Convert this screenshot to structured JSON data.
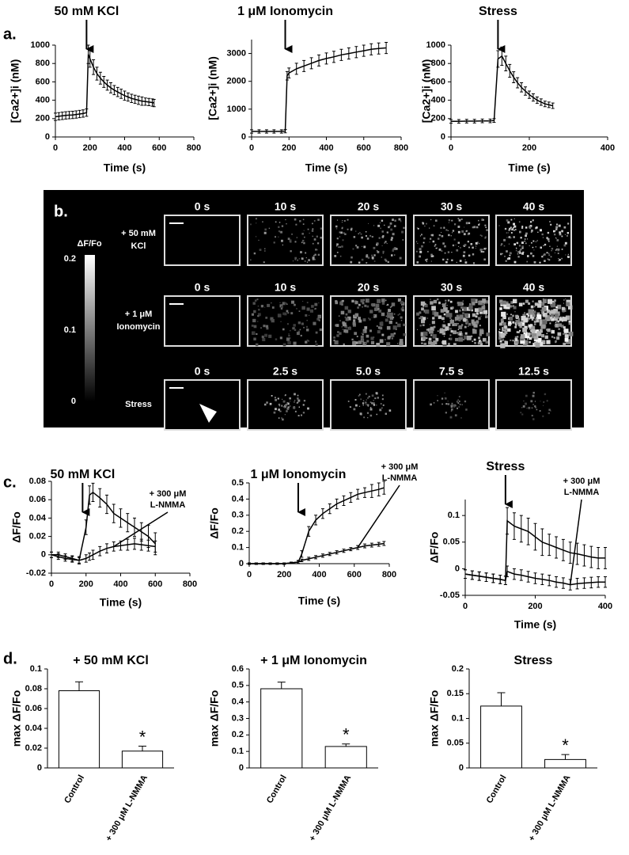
{
  "panel_labels": [
    "a.",
    "b.",
    "c.",
    "d."
  ],
  "image_panel": {
    "colorbar": {
      "label": "ΔF/Fo",
      "ticks": [
        0.2,
        0.1,
        0
      ]
    },
    "rows": [
      {
        "label": [
          "+ 50 mM",
          "KCl"
        ],
        "times": [
          "0 s",
          "10 s",
          "20 s",
          "30 s",
          "40 s"
        ]
      },
      {
        "label": [
          "+ 1 μM",
          "Ionomycin"
        ],
        "times": [
          "0 s",
          "10 s",
          "20 s",
          "30 s",
          "40 s"
        ]
      },
      {
        "label": [
          "Stress"
        ],
        "times": [
          "0 s",
          "2.5 s",
          "5.0 s",
          "7.5 s",
          "12.5 s"
        ]
      }
    ]
  },
  "chart_data": [
    {
      "type": "line",
      "stimulus": "50 mM KCl",
      "stimulus_x": 180,
      "ylabel": "[Ca2+]i (nM)",
      "xlabel": "Time (s)",
      "xlim": [
        0,
        800
      ],
      "xticks": [
        0,
        200,
        400,
        600,
        800
      ],
      "ylim": [
        0,
        1000
      ],
      "yticks": [
        0,
        200,
        400,
        600,
        800,
        1000
      ],
      "x": [
        0,
        20,
        40,
        60,
        80,
        100,
        120,
        140,
        160,
        180,
        190,
        200,
        220,
        240,
        260,
        280,
        300,
        320,
        340,
        360,
        380,
        400,
        420,
        440,
        460,
        480,
        500,
        520,
        540,
        560,
        570
      ],
      "series": [
        {
          "color": "#000000",
          "values": [
            220,
            225,
            230,
            235,
            238,
            240,
            245,
            250,
            255,
            265,
            900,
            850,
            760,
            690,
            640,
            600,
            565,
            535,
            510,
            490,
            470,
            450,
            435,
            420,
            410,
            400,
            390,
            385,
            380,
            375,
            370
          ],
          "errors": [
            40,
            40,
            40,
            40,
            40,
            40,
            40,
            40,
            40,
            40,
            100,
            90,
            80,
            70,
            65,
            60,
            55,
            55,
            50,
            50,
            50,
            50,
            45,
            45,
            45,
            45,
            45,
            40,
            40,
            40,
            40
          ]
        }
      ]
    },
    {
      "type": "line",
      "stimulus": "1 μM Ionomycin",
      "stimulus_x": 180,
      "ylabel": "[Ca2+]i (nM)",
      "xlabel": "Time (s)",
      "xlim": [
        0,
        800
      ],
      "xticks": [
        0,
        200,
        400,
        600,
        800
      ],
      "ylim": [
        0,
        3500
      ],
      "yticks": [
        0,
        1000,
        2000,
        3000
      ],
      "x": [
        0,
        40,
        80,
        120,
        160,
        180,
        190,
        200,
        240,
        280,
        320,
        360,
        400,
        440,
        480,
        520,
        560,
        600,
        640,
        680,
        720
      ],
      "series": [
        {
          "color": "#000000",
          "values": [
            200,
            200,
            200,
            200,
            200,
            210,
            2200,
            2300,
            2450,
            2550,
            2650,
            2750,
            2820,
            2880,
            2950,
            3000,
            3050,
            3100,
            3150,
            3180,
            3200
          ],
          "errors": [
            60,
            60,
            60,
            60,
            60,
            60,
            150,
            180,
            200,
            200,
            200,
            200,
            200,
            200,
            200,
            200,
            200,
            200,
            200,
            200,
            200
          ]
        }
      ]
    },
    {
      "type": "line",
      "stimulus": "Stress",
      "stimulus_x": 120,
      "ylabel": "[Ca2+]i (nM)",
      "xlabel": "Time (s)",
      "xlim": [
        0,
        400
      ],
      "xticks": [
        0,
        200,
        400
      ],
      "ylim": [
        0,
        1000
      ],
      "yticks": [
        0,
        200,
        400,
        600,
        800,
        1000
      ],
      "x": [
        0,
        20,
        40,
        60,
        80,
        100,
        110,
        120,
        130,
        140,
        150,
        160,
        170,
        180,
        190,
        200,
        210,
        220,
        230,
        240,
        250,
        260
      ],
      "series": [
        {
          "color": "#000000",
          "values": [
            170,
            170,
            172,
            172,
            175,
            175,
            180,
            850,
            880,
            800,
            720,
            650,
            590,
            540,
            500,
            460,
            430,
            400,
            380,
            360,
            350,
            340
          ],
          "errors": [
            20,
            20,
            20,
            20,
            20,
            20,
            20,
            90,
            100,
            80,
            70,
            60,
            55,
            50,
            45,
            40,
            40,
            35,
            35,
            30,
            30,
            30
          ]
        }
      ]
    },
    {
      "type": "line",
      "stimulus": "50 mM KCl",
      "stimulus_x": 180,
      "note": [
        "+ 300 μM",
        "L-NMMA"
      ],
      "ylabel": "ΔF/Fo",
      "xlabel": "Time (s)",
      "xlim": [
        0,
        800
      ],
      "xticks": [
        0,
        200,
        400,
        600,
        800
      ],
      "ylim": [
        -0.02,
        0.08
      ],
      "yticks": [
        -0.02,
        0,
        0.02,
        0.04,
        0.06,
        0.08
      ],
      "x": [
        0,
        40,
        80,
        120,
        160,
        200,
        220,
        240,
        280,
        320,
        360,
        400,
        440,
        480,
        520,
        560,
        600
      ],
      "series": [
        {
          "color": "#000000",
          "values": [
            0,
            0,
            -0.002,
            -0.004,
            -0.006,
            0.03,
            0.065,
            0.068,
            0.062,
            0.055,
            0.045,
            0.04,
            0.035,
            0.03,
            0.025,
            0.02,
            0.012
          ],
          "errors": [
            0.003,
            0.003,
            0.003,
            0.003,
            0.004,
            0.008,
            0.01,
            0.01,
            0.01,
            0.01,
            0.01,
            0.01,
            0.01,
            0.01,
            0.01,
            0.012,
            0.012
          ]
        },
        {
          "color": "#000000",
          "values": [
            0,
            -0.002,
            -0.004,
            -0.005,
            -0.006,
            -0.004,
            -0.002,
            0,
            0.004,
            0.007,
            0.009,
            0.01,
            0.011,
            0.012,
            0.011,
            0.01,
            0.009
          ],
          "errors": [
            0.003,
            0.003,
            0.003,
            0.003,
            0.003,
            0.004,
            0.004,
            0.005,
            0.005,
            0.005,
            0.005,
            0.005,
            0.006,
            0.006,
            0.006,
            0.006,
            0.006
          ]
        }
      ]
    },
    {
      "type": "line",
      "stimulus": "1 μM Ionomycin",
      "stimulus_x": 280,
      "note": [
        "+ 300 μM",
        "L-NMMA"
      ],
      "ylabel": "ΔF/Fo",
      "xlabel": "Time (s)",
      "xlim": [
        0,
        800
      ],
      "xticks": [
        0,
        200,
        400,
        600,
        800
      ],
      "ylim": [
        0,
        0.5
      ],
      "yticks": [
        0,
        0.1,
        0.2,
        0.3,
        0.4,
        0.5
      ],
      "x": [
        0,
        40,
        80,
        120,
        160,
        200,
        240,
        280,
        300,
        340,
        380,
        420,
        460,
        500,
        540,
        580,
        620,
        660,
        700,
        740,
        770
      ],
      "series": [
        {
          "color": "#000000",
          "values": [
            0,
            0,
            0,
            0,
            0,
            0,
            0.005,
            0.01,
            0.06,
            0.2,
            0.27,
            0.31,
            0.34,
            0.37,
            0.39,
            0.41,
            0.43,
            0.44,
            0.45,
            0.46,
            0.47
          ],
          "errors": [
            0.005,
            0.005,
            0.005,
            0.005,
            0.005,
            0.005,
            0.005,
            0.01,
            0.02,
            0.03,
            0.03,
            0.03,
            0.03,
            0.03,
            0.03,
            0.03,
            0.03,
            0.03,
            0.04,
            0.04,
            0.04
          ]
        },
        {
          "color": "#000000",
          "values": [
            0,
            0,
            0,
            0,
            0,
            0,
            0.005,
            0.01,
            0.02,
            0.03,
            0.04,
            0.05,
            0.06,
            0.07,
            0.08,
            0.09,
            0.1,
            0.11,
            0.115,
            0.12,
            0.125
          ],
          "errors": [
            0.005,
            0.005,
            0.005,
            0.005,
            0.005,
            0.005,
            0.005,
            0.008,
            0.008,
            0.01,
            0.01,
            0.01,
            0.01,
            0.01,
            0.01,
            0.01,
            0.012,
            0.012,
            0.012,
            0.012,
            0.012
          ]
        }
      ]
    },
    {
      "type": "line",
      "stimulus": "Stress",
      "stimulus_x": 115,
      "note": [
        "+ 300 μM",
        "L-NMMA"
      ],
      "ylabel": "ΔF/Fo",
      "xlabel": "Time (s)",
      "xlim": [
        0,
        400
      ],
      "xticks": [
        0,
        200,
        400
      ],
      "ylim": [
        -0.05,
        0.13
      ],
      "yticks": [
        -0.05,
        0,
        0.05,
        0.1
      ],
      "x": [
        0,
        20,
        40,
        60,
        80,
        100,
        115,
        120,
        140,
        160,
        180,
        200,
        220,
        240,
        260,
        280,
        300,
        320,
        340,
        360,
        380,
        400
      ],
      "series": [
        {
          "color": "#000000",
          "values": [
            -0.01,
            -0.012,
            -0.014,
            -0.016,
            -0.018,
            -0.02,
            -0.022,
            0.09,
            0.08,
            0.075,
            0.07,
            0.06,
            0.05,
            0.045,
            0.04,
            0.035,
            0.03,
            0.028,
            0.025,
            0.022,
            0.02,
            0.02
          ],
          "errors": [
            0.008,
            0.008,
            0.008,
            0.008,
            0.008,
            0.008,
            0.008,
            0.025,
            0.025,
            0.025,
            0.025,
            0.025,
            0.025,
            0.02,
            0.02,
            0.02,
            0.02,
            0.02,
            0.02,
            0.02,
            0.02,
            0.02
          ]
        },
        {
          "color": "#000000",
          "values": [
            -0.01,
            -0.012,
            -0.014,
            -0.016,
            -0.018,
            -0.02,
            -0.022,
            -0.005,
            -0.01,
            -0.012,
            -0.015,
            -0.018,
            -0.02,
            -0.022,
            -0.025,
            -0.027,
            -0.03,
            -0.028,
            -0.027,
            -0.026,
            -0.025,
            -0.025
          ],
          "errors": [
            0.008,
            0.008,
            0.008,
            0.008,
            0.008,
            0.008,
            0.008,
            0.01,
            0.01,
            0.01,
            0.01,
            0.01,
            0.01,
            0.01,
            0.01,
            0.01,
            0.01,
            0.01,
            0.01,
            0.01,
            0.01,
            0.01
          ]
        }
      ]
    },
    {
      "type": "bar",
      "title": "+ 50 mM KCl",
      "ylabel": "max ΔF/Fo",
      "categories": [
        "Control",
        "+ 300 μM L-NMMA"
      ],
      "values": [
        0.078,
        0.017
      ],
      "errors": [
        0.009,
        0.005
      ],
      "color": "#ffffff",
      "marker": "*",
      "ylim": [
        0,
        0.1
      ],
      "yticks": [
        0,
        0.02,
        0.04,
        0.06,
        0.08,
        0.1
      ]
    },
    {
      "type": "bar",
      "title": "+ 1 μM Ionomycin",
      "ylabel": "max ΔF/Fo",
      "categories": [
        "Control",
        "+ 300 μM L-NMMA"
      ],
      "values": [
        0.48,
        0.13
      ],
      "errors": [
        0.04,
        0.015
      ],
      "color": "#ffffff",
      "marker": "*",
      "ylim": [
        0,
        0.6
      ],
      "yticks": [
        0,
        0.1,
        0.2,
        0.3,
        0.4,
        0.5,
        0.6
      ]
    },
    {
      "type": "bar",
      "title": "Stress",
      "ylabel": "max ΔF/Fo",
      "categories": [
        "Control",
        "+ 300 μM L-NMMA"
      ],
      "values": [
        0.125,
        0.017
      ],
      "errors": [
        0.027,
        0.01
      ],
      "color": "#ffffff",
      "marker": "*",
      "ylim": [
        0,
        0.2
      ],
      "yticks": [
        0,
        0.05,
        0.1,
        0.15,
        0.2
      ]
    }
  ]
}
